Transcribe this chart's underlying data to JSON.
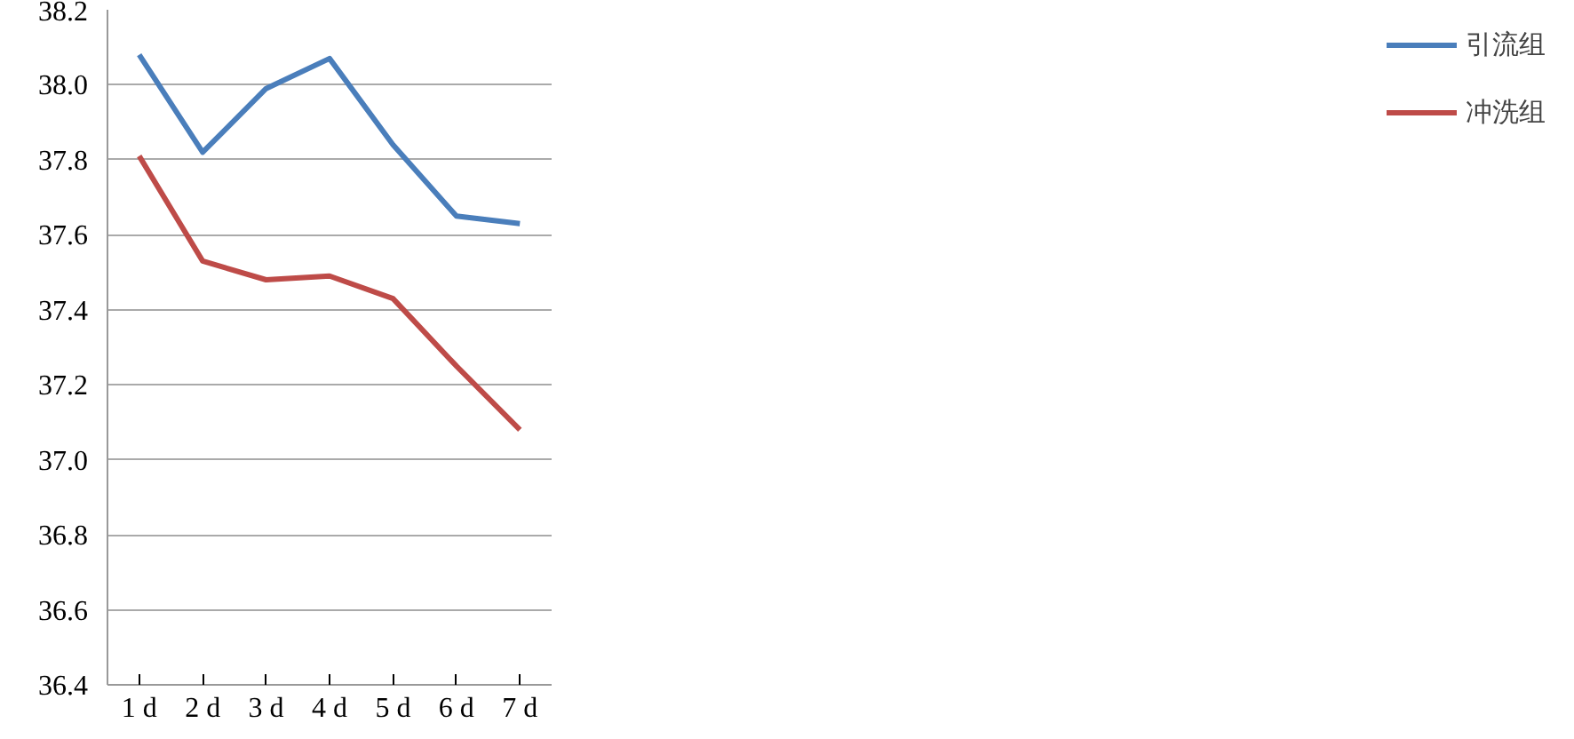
{
  "chart_data": {
    "type": "line",
    "categories": [
      "1 d",
      "2 d",
      "3 d",
      "4 d",
      "5 d",
      "6 d",
      "7 d"
    ],
    "series": [
      {
        "name": "引流组",
        "color": "#4a7ebb",
        "values": [
          38.08,
          37.82,
          37.99,
          38.07,
          37.84,
          37.65,
          37.63
        ]
      },
      {
        "name": "冲洗组",
        "color": "#be4b48",
        "values": [
          37.81,
          37.53,
          37.48,
          37.49,
          37.43,
          37.25,
          37.08
        ]
      }
    ],
    "ylim": [
      36.4,
      38.2
    ],
    "yticks": [
      {
        "value": 36.4,
        "label": "36.4"
      },
      {
        "value": 36.6,
        "label": "36.6"
      },
      {
        "value": 36.8,
        "label": "36.8"
      },
      {
        "value": 37.0,
        "label": "37.0"
      },
      {
        "value": 37.2,
        "label": "37.2"
      },
      {
        "value": 37.4,
        "label": "37.4"
      },
      {
        "value": 37.6,
        "label": "37.6"
      },
      {
        "value": 37.8,
        "label": "37.8"
      },
      {
        "value": 38.0,
        "label": "38.0"
      },
      {
        "value": 38.2,
        "label": "38.2"
      }
    ],
    "grid": "y",
    "legend": "right",
    "marker": "none",
    "line_style": "solid"
  }
}
